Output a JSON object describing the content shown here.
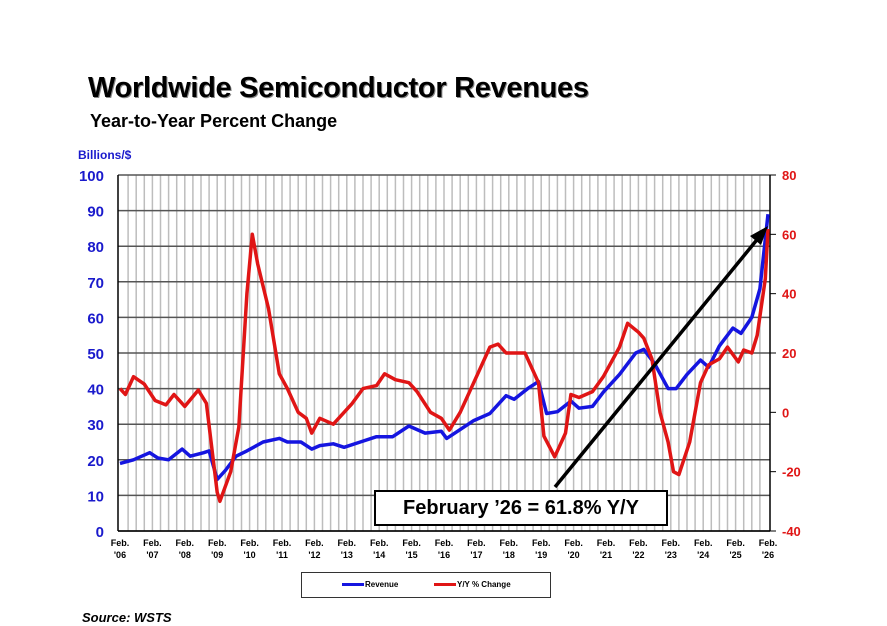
{
  "chart_data": {
    "type": "line",
    "title": "Worldwide Semiconductor Revenues",
    "subtitle": "Year-to-Year Percent Change",
    "ylabel_left": "Billions/$",
    "ylim_left": [
      0,
      100
    ],
    "yticks_left": [
      "0",
      "10",
      "20",
      "30",
      "40",
      "50",
      "60",
      "70",
      "80",
      "90",
      "100"
    ],
    "ylim_right": [
      -40,
      80
    ],
    "yticks_right": [
      "-40",
      "-20",
      "0",
      "20",
      "40",
      "60",
      "80"
    ],
    "xticks": [
      [
        "Feb.",
        "'06"
      ],
      [
        "Feb.",
        "'07"
      ],
      [
        "Feb.",
        "'08"
      ],
      [
        "Feb.",
        "'09"
      ],
      [
        "Feb.",
        "'10"
      ],
      [
        "Feb.",
        "'11"
      ],
      [
        "Feb.",
        "'12"
      ],
      [
        "Feb.",
        "'13"
      ],
      [
        "Feb.",
        "'14"
      ],
      [
        "Feb.",
        "'15"
      ],
      [
        "Feb.",
        "'16"
      ],
      [
        "Feb.",
        "'17"
      ],
      [
        "Feb.",
        "'18"
      ],
      [
        "Feb.",
        "'19"
      ],
      [
        "Feb.",
        "'20"
      ],
      [
        "Feb.",
        "'21"
      ],
      [
        "Feb.",
        "'22"
      ],
      [
        "Feb.",
        "'23"
      ],
      [
        "Feb.",
        "'24"
      ],
      [
        "Feb.",
        "'25"
      ],
      [
        "Feb.",
        "'26"
      ]
    ],
    "xlim": [
      "2006-02",
      "2026-02"
    ],
    "grid": true,
    "legend_position": "bottom",
    "annotation": "February ’26 = 61.8% Y/Y",
    "series": [
      {
        "name": "Revenue",
        "axis": "left",
        "color": "#1515e0",
        "points": [
          [
            "2006-02",
            19
          ],
          [
            "2006-07",
            20
          ],
          [
            "2007-01",
            22
          ],
          [
            "2007-04",
            20.5
          ],
          [
            "2007-08",
            20
          ],
          [
            "2008-01",
            23
          ],
          [
            "2008-04",
            21
          ],
          [
            "2008-09",
            22
          ],
          [
            "2008-11",
            22.5
          ],
          [
            "2009-02",
            14.5
          ],
          [
            "2009-05",
            17
          ],
          [
            "2009-09",
            21
          ],
          [
            "2010-01",
            22.5
          ],
          [
            "2010-07",
            25
          ],
          [
            "2011-01",
            26
          ],
          [
            "2011-04",
            25
          ],
          [
            "2011-09",
            25
          ],
          [
            "2012-01",
            23
          ],
          [
            "2012-04",
            24
          ],
          [
            "2012-09",
            24.5
          ],
          [
            "2013-01",
            23.5
          ],
          [
            "2013-07",
            25
          ],
          [
            "2014-01",
            26.5
          ],
          [
            "2014-07",
            26.5
          ],
          [
            "2015-01",
            29.5
          ],
          [
            "2015-07",
            27.5
          ],
          [
            "2016-01",
            28
          ],
          [
            "2016-03",
            26
          ],
          [
            "2016-07",
            28
          ],
          [
            "2017-01",
            31
          ],
          [
            "2017-07",
            33
          ],
          [
            "2018-01",
            38
          ],
          [
            "2018-04",
            37
          ],
          [
            "2018-09",
            40
          ],
          [
            "2019-01",
            42
          ],
          [
            "2019-04",
            33
          ],
          [
            "2019-08",
            33.5
          ],
          [
            "2020-01",
            36.5
          ],
          [
            "2020-04",
            34.5
          ],
          [
            "2020-09",
            35
          ],
          [
            "2021-01",
            39
          ],
          [
            "2021-07",
            44
          ],
          [
            "2022-01",
            50
          ],
          [
            "2022-04",
            51
          ],
          [
            "2022-08",
            47
          ],
          [
            "2023-01",
            40
          ],
          [
            "2023-04",
            40
          ],
          [
            "2023-08",
            44
          ],
          [
            "2024-01",
            48
          ],
          [
            "2024-04",
            46
          ],
          [
            "2024-08",
            52
          ],
          [
            "2025-01",
            57
          ],
          [
            "2025-04",
            55.5
          ],
          [
            "2025-08",
            60
          ],
          [
            "2025-11",
            68
          ],
          [
            "2026-02",
            89
          ]
        ]
      },
      {
        "name": "Y/Y % Change",
        "axis": "right",
        "color": "#e01515",
        "points": [
          [
            "2006-02",
            8
          ],
          [
            "2006-04",
            6
          ],
          [
            "2006-07",
            12
          ],
          [
            "2006-11",
            9.5
          ],
          [
            "2007-03",
            4
          ],
          [
            "2007-07",
            2.5
          ],
          [
            "2007-10",
            6
          ],
          [
            "2008-02",
            2
          ],
          [
            "2008-07",
            7.5
          ],
          [
            "2008-10",
            3
          ],
          [
            "2009-02",
            -27
          ],
          [
            "2009-03",
            -30
          ],
          [
            "2009-07",
            -20
          ],
          [
            "2009-10",
            -5
          ],
          [
            "2010-01",
            40
          ],
          [
            "2010-03",
            60
          ],
          [
            "2010-05",
            50
          ],
          [
            "2010-09",
            35
          ],
          [
            "2011-01",
            13
          ],
          [
            "2011-04",
            8
          ],
          [
            "2011-08",
            0
          ],
          [
            "2011-11",
            -2
          ],
          [
            "2012-01",
            -7
          ],
          [
            "2012-04",
            -2
          ],
          [
            "2012-09",
            -4
          ],
          [
            "2013-01",
            0
          ],
          [
            "2013-04",
            3
          ],
          [
            "2013-08",
            8
          ],
          [
            "2014-01",
            9
          ],
          [
            "2014-04",
            13
          ],
          [
            "2014-08",
            11
          ],
          [
            "2015-01",
            10
          ],
          [
            "2015-04",
            7
          ],
          [
            "2015-09",
            0
          ],
          [
            "2016-01",
            -2
          ],
          [
            "2016-04",
            -6
          ],
          [
            "2016-08",
            0
          ],
          [
            "2017-01",
            10
          ],
          [
            "2017-07",
            22
          ],
          [
            "2017-10",
            23
          ],
          [
            "2018-01",
            20
          ],
          [
            "2018-04",
            20
          ],
          [
            "2018-08",
            20
          ],
          [
            "2019-01",
            10
          ],
          [
            "2019-03",
            -8
          ],
          [
            "2019-07",
            -15
          ],
          [
            "2019-11",
            -7
          ],
          [
            "2020-01",
            6
          ],
          [
            "2020-04",
            5
          ],
          [
            "2020-09",
            7
          ],
          [
            "2021-01",
            12
          ],
          [
            "2021-07",
            22
          ],
          [
            "2021-10",
            30
          ],
          [
            "2022-02",
            27
          ],
          [
            "2022-04",
            25
          ],
          [
            "2022-07",
            18
          ],
          [
            "2022-10",
            0
          ],
          [
            "2023-01",
            -10
          ],
          [
            "2023-03",
            -20
          ],
          [
            "2023-05",
            -21
          ],
          [
            "2023-09",
            -10
          ],
          [
            "2024-01",
            10
          ],
          [
            "2024-04",
            16
          ],
          [
            "2024-08",
            18
          ],
          [
            "2024-11",
            22
          ],
          [
            "2025-03",
            17
          ],
          [
            "2025-05",
            21
          ],
          [
            "2025-08",
            20
          ],
          [
            "2025-10",
            26
          ],
          [
            "2026-01",
            45
          ],
          [
            "2026-02",
            61.8
          ]
        ]
      }
    ]
  },
  "source": "Source: WSTS"
}
